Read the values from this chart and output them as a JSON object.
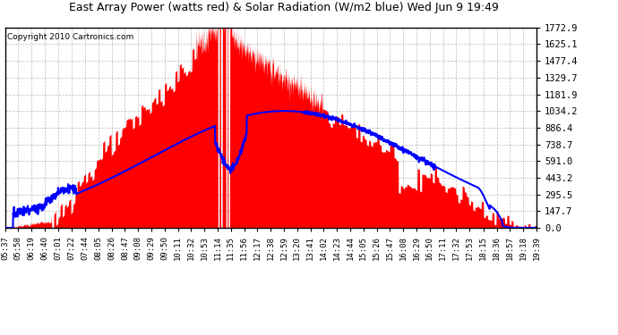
{
  "title": "East Array Power (watts red) & Solar Radiation (W/m2 blue) Wed Jun 9 19:49",
  "copyright": "Copyright 2010 Cartronics.com",
  "background_color": "#ffffff",
  "plot_bg_color": "#ffffff",
  "grid_color": "#aaaaaa",
  "ytick_labels": [
    "0.0",
    "147.7",
    "295.5",
    "443.2",
    "591.0",
    "738.7",
    "886.4",
    "1034.2",
    "1181.9",
    "1329.7",
    "1477.4",
    "1625.1",
    "1772.9"
  ],
  "ytick_values": [
    0.0,
    147.7,
    295.5,
    443.2,
    591.0,
    738.7,
    886.4,
    1034.2,
    1181.9,
    1329.7,
    1477.4,
    1625.1,
    1772.9
  ],
  "ymax": 1772.9,
  "red_color": "#ff0000",
  "blue_color": "#0000ff",
  "fill_color": "#ff0000",
  "xtick_labels": [
    "05:37",
    "05:58",
    "06:19",
    "06:40",
    "07:01",
    "07:22",
    "07:44",
    "08:05",
    "08:26",
    "08:47",
    "09:08",
    "09:29",
    "09:50",
    "10:11",
    "10:32",
    "10:53",
    "11:14",
    "11:35",
    "11:56",
    "12:17",
    "12:38",
    "12:59",
    "13:20",
    "13:41",
    "14:02",
    "14:23",
    "14:44",
    "15:05",
    "15:26",
    "15:47",
    "16:08",
    "16:29",
    "16:50",
    "17:11",
    "17:32",
    "17:53",
    "18:15",
    "18:36",
    "18:57",
    "19:18",
    "19:39"
  ]
}
